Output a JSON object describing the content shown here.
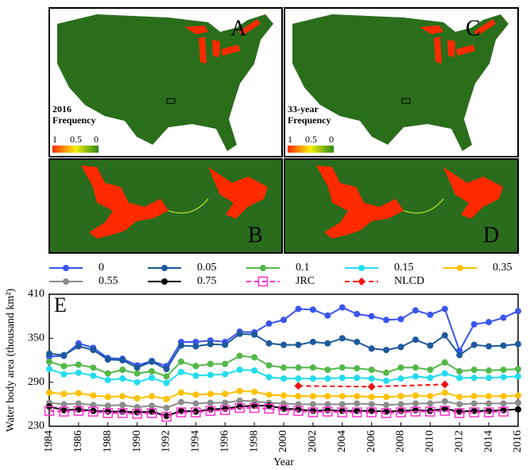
{
  "panels": [
    {
      "label": "A",
      "legend_title": [
        "2016",
        "Frequency"
      ],
      "colorbar_ticks": [
        1,
        0.5,
        0
      ]
    },
    {
      "label": "C",
      "legend_title": [
        "33-year",
        "Frequency"
      ],
      "colorbar_ticks": [
        1,
        0.5,
        0
      ]
    },
    {
      "label": "B"
    },
    {
      "label": "D"
    }
  ],
  "chart_data": {
    "type": "line",
    "annotation": "E",
    "x_label": "Year",
    "y_label": "Water body area (thousand km²)",
    "x": [
      1984,
      1985,
      1986,
      1987,
      1988,
      1989,
      1990,
      1991,
      1992,
      1993,
      1994,
      1995,
      1996,
      1997,
      1998,
      1999,
      2000,
      2001,
      2002,
      2003,
      2004,
      2005,
      2006,
      2007,
      2008,
      2009,
      2010,
      2011,
      2012,
      2013,
      2014,
      2015,
      2016
    ],
    "xlim": [
      1984,
      2016
    ],
    "xticks": [
      1984,
      1986,
      1988,
      1990,
      1992,
      1994,
      1996,
      1998,
      2000,
      2002,
      2004,
      2006,
      2008,
      2010,
      2012,
      2014,
      2016
    ],
    "ylim": [
      230,
      410
    ],
    "yticks": [
      230,
      290,
      350,
      410
    ],
    "series": [
      {
        "name": "0",
        "color": "#3a55f0",
        "marker": "circle",
        "dash": false,
        "values": [
          325,
          326,
          343,
          337,
          323,
          322,
          313,
          319,
          312,
          345,
          345,
          347,
          345,
          359,
          358,
          370,
          375,
          390,
          389,
          381,
          392,
          383,
          380,
          375,
          376,
          388,
          382,
          390,
          333,
          369,
          372,
          378,
          387
        ]
      },
      {
        "name": "0.05",
        "color": "#1d5a9c",
        "marker": "circle",
        "dash": false,
        "values": [
          329,
          327,
          339,
          334,
          321,
          320,
          310,
          318,
          308,
          340,
          339,
          342,
          341,
          356,
          355,
          343,
          341,
          341,
          345,
          343,
          350,
          345,
          336,
          334,
          338,
          348,
          340,
          354,
          327,
          341,
          339,
          340,
          342
        ]
      },
      {
        "name": "0.1",
        "color": "#52b848",
        "marker": "circle",
        "dash": false,
        "values": [
          318,
          312,
          314,
          310,
          302,
          307,
          302,
          305,
          298,
          318,
          312,
          315,
          315,
          326,
          324,
          313,
          310,
          310,
          310,
          307,
          310,
          309,
          307,
          303,
          310,
          310,
          307,
          317,
          305,
          307,
          306,
          307,
          308
        ]
      },
      {
        "name": "0.15",
        "color": "#22dcef",
        "marker": "circle",
        "dash": false,
        "values": [
          308,
          301,
          303,
          299,
          293,
          295,
          290,
          296,
          289,
          304,
          299,
          300,
          301,
          307,
          306,
          297,
          295,
          295,
          295,
          295,
          296,
          296,
          295,
          292,
          295,
          298,
          296,
          302,
          296,
          296,
          296,
          297,
          298
        ]
      },
      {
        "name": "0.35",
        "color": "#ffc000",
        "marker": "circle",
        "dash": false,
        "values": [
          276,
          274,
          275,
          272,
          270,
          271,
          268,
          271,
          267,
          276,
          273,
          274,
          274,
          278,
          277,
          273,
          272,
          271,
          271,
          271,
          271,
          271,
          270,
          270,
          271,
          272,
          271,
          276,
          270,
          271,
          271,
          271,
          272
        ]
      },
      {
        "name": "0.55",
        "color": "#8c8c8c",
        "marker": "circle",
        "dash": false,
        "values": [
          262,
          260,
          261,
          259,
          258,
          259,
          256,
          258,
          255,
          263,
          261,
          262,
          262,
          265,
          264,
          262,
          261,
          260,
          260,
          260,
          260,
          261,
          260,
          259,
          260,
          261,
          261,
          264,
          260,
          261,
          261,
          261,
          262
        ]
      },
      {
        "name": "0.75",
        "color": "#000000",
        "marker": "circle",
        "dash": false,
        "values": [
          257,
          252,
          253,
          251,
          250,
          250,
          249,
          250,
          244,
          251,
          250,
          253,
          254,
          257,
          258,
          258,
          254,
          253,
          251,
          252,
          251,
          251,
          251,
          250,
          251,
          252,
          251,
          254,
          250,
          251,
          251,
          252,
          253
        ]
      },
      {
        "name": "JRC",
        "color": "#ff33cc",
        "marker": "square",
        "dash": true,
        "values": [
          251,
          250,
          251,
          250,
          248,
          248,
          247,
          248,
          243,
          249,
          249,
          251,
          252,
          255,
          255,
          254,
          252,
          251,
          249,
          250,
          249,
          249,
          249,
          248,
          249,
          250,
          250,
          251,
          248,
          249,
          249,
          250,
          null
        ]
      },
      {
        "name": "NLCD",
        "color": "#ee1111",
        "marker": "diamond",
        "dash": true,
        "x": [
          2001,
          2006,
          2011
        ],
        "values": [
          285,
          284,
          287
        ]
      }
    ]
  }
}
